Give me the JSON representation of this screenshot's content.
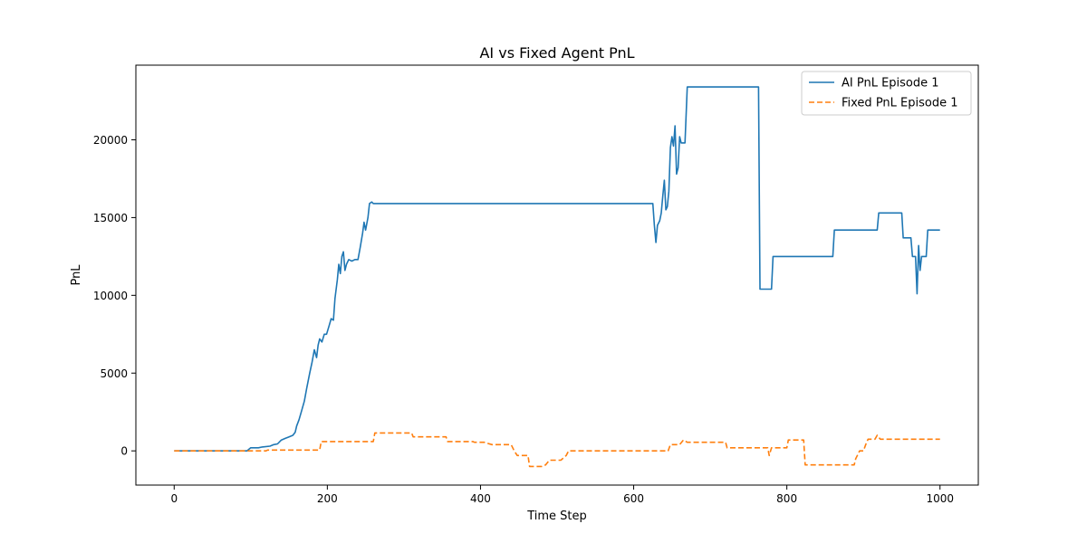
{
  "chart_data": {
    "type": "line",
    "title": "AI vs Fixed Agent PnL",
    "xlabel": "Time Step",
    "ylabel": "PnL",
    "xlim": [
      -50,
      1050
    ],
    "ylim": [
      -2200,
      24800
    ],
    "xticks": [
      0,
      200,
      400,
      600,
      800,
      1000
    ],
    "yticks": [
      0,
      5000,
      10000,
      15000,
      20000
    ],
    "grid": false,
    "legend": "top-right",
    "series": [
      {
        "name": "AI PnL Episode 1",
        "color": "#1f77b4",
        "style": "solid",
        "points": [
          [
            0,
            0
          ],
          [
            95,
            0
          ],
          [
            100,
            200
          ],
          [
            110,
            200
          ],
          [
            115,
            250
          ],
          [
            125,
            300
          ],
          [
            130,
            400
          ],
          [
            135,
            450
          ],
          [
            140,
            700
          ],
          [
            145,
            800
          ],
          [
            150,
            900
          ],
          [
            155,
            1000
          ],
          [
            158,
            1200
          ],
          [
            160,
            1600
          ],
          [
            163,
            2000
          ],
          [
            166,
            2500
          ],
          [
            170,
            3200
          ],
          [
            173,
            4000
          ],
          [
            177,
            5000
          ],
          [
            180,
            5700
          ],
          [
            183,
            6500
          ],
          [
            186,
            6000
          ],
          [
            188,
            6800
          ],
          [
            190,
            7200
          ],
          [
            193,
            7000
          ],
          [
            196,
            7500
          ],
          [
            199,
            7500
          ],
          [
            202,
            8000
          ],
          [
            205,
            8500
          ],
          [
            208,
            8400
          ],
          [
            210,
            9800
          ],
          [
            213,
            11000
          ],
          [
            215,
            12000
          ],
          [
            217,
            11400
          ],
          [
            219,
            12500
          ],
          [
            221,
            12800
          ],
          [
            223,
            11600
          ],
          [
            225,
            12000
          ],
          [
            228,
            12300
          ],
          [
            232,
            12200
          ],
          [
            236,
            12300
          ],
          [
            240,
            12300
          ],
          [
            243,
            13100
          ],
          [
            246,
            14000
          ],
          [
            248,
            14700
          ],
          [
            250,
            14200
          ],
          [
            253,
            15000
          ],
          [
            255,
            15900
          ],
          [
            258,
            16000
          ],
          [
            260,
            15900
          ],
          [
            625,
            15900
          ],
          [
            627,
            14500
          ],
          [
            629,
            13400
          ],
          [
            631,
            14500
          ],
          [
            634,
            14800
          ],
          [
            636,
            15300
          ],
          [
            638,
            16400
          ],
          [
            640,
            17400
          ],
          [
            642,
            15500
          ],
          [
            644,
            15700
          ],
          [
            646,
            16700
          ],
          [
            648,
            19500
          ],
          [
            650,
            20200
          ],
          [
            652,
            19600
          ],
          [
            654,
            20900
          ],
          [
            656,
            17800
          ],
          [
            658,
            18200
          ],
          [
            660,
            20200
          ],
          [
            662,
            19800
          ],
          [
            667,
            19800
          ],
          [
            670,
            23400
          ],
          [
            763,
            23400
          ],
          [
            765,
            10400
          ],
          [
            780,
            10400
          ],
          [
            782,
            12500
          ],
          [
            860,
            12500
          ],
          [
            862,
            14200
          ],
          [
            918,
            14200
          ],
          [
            920,
            15300
          ],
          [
            950,
            15300
          ],
          [
            952,
            13700
          ],
          [
            962,
            13700
          ],
          [
            964,
            12500
          ],
          [
            968,
            12500
          ],
          [
            970,
            10100
          ],
          [
            972,
            13200
          ],
          [
            974,
            11600
          ],
          [
            976,
            12500
          ],
          [
            982,
            12500
          ],
          [
            984,
            14200
          ],
          [
            1000,
            14200
          ]
        ]
      },
      {
        "name": "Fixed PnL Episode 1",
        "color": "#ff7f0e",
        "style": "dashed",
        "points": [
          [
            0,
            0
          ],
          [
            120,
            0
          ],
          [
            122,
            50
          ],
          [
            190,
            50
          ],
          [
            192,
            600
          ],
          [
            260,
            600
          ],
          [
            262,
            1150
          ],
          [
            310,
            1150
          ],
          [
            312,
            900
          ],
          [
            355,
            900
          ],
          [
            357,
            600
          ],
          [
            390,
            600
          ],
          [
            392,
            550
          ],
          [
            405,
            550
          ],
          [
            408,
            500
          ],
          [
            415,
            400
          ],
          [
            440,
            400
          ],
          [
            444,
            0
          ],
          [
            448,
            -300
          ],
          [
            462,
            -300
          ],
          [
            464,
            -1000
          ],
          [
            480,
            -1000
          ],
          [
            485,
            -900
          ],
          [
            490,
            -600
          ],
          [
            505,
            -600
          ],
          [
            512,
            -300
          ],
          [
            515,
            0
          ],
          [
            645,
            0
          ],
          [
            648,
            400
          ],
          [
            660,
            400
          ],
          [
            665,
            700
          ],
          [
            670,
            550
          ],
          [
            720,
            550
          ],
          [
            722,
            200
          ],
          [
            775,
            200
          ],
          [
            777,
            -300
          ],
          [
            780,
            200
          ],
          [
            800,
            200
          ],
          [
            802,
            700
          ],
          [
            822,
            700
          ],
          [
            824,
            -900
          ],
          [
            888,
            -900
          ],
          [
            890,
            -500
          ],
          [
            895,
            0
          ],
          [
            900,
            0
          ],
          [
            903,
            400
          ],
          [
            906,
            750
          ],
          [
            915,
            750
          ],
          [
            918,
            1000
          ],
          [
            922,
            750
          ],
          [
            1000,
            750
          ]
        ]
      }
    ]
  }
}
